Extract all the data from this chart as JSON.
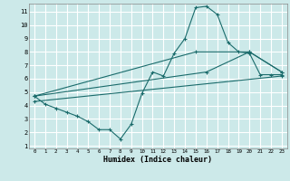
{
  "xlabel": "Humidex (Indice chaleur)",
  "bg_color": "#cce9e9",
  "grid_color": "#ffffff",
  "line_color": "#1a6b6b",
  "line1_x": [
    0,
    1,
    2,
    3,
    4,
    5,
    6,
    7,
    8,
    9,
    10,
    11,
    12,
    13,
    14,
    15,
    16,
    17,
    18,
    19,
    20,
    21,
    22,
    23
  ],
  "line1_y": [
    4.7,
    4.1,
    3.8,
    3.5,
    3.2,
    2.8,
    2.2,
    2.2,
    1.5,
    2.6,
    4.9,
    6.5,
    6.2,
    7.9,
    9.0,
    11.3,
    11.4,
    10.8,
    8.7,
    8.0,
    7.9,
    6.3,
    6.3,
    6.3
  ],
  "line2_x": [
    0,
    15,
    20,
    23
  ],
  "line2_y": [
    4.7,
    8.0,
    8.0,
    6.5
  ],
  "line3_x": [
    0,
    16,
    20,
    23
  ],
  "line3_y": [
    4.7,
    6.5,
    8.0,
    6.5
  ],
  "line4_x": [
    0,
    23
  ],
  "line4_y": [
    4.3,
    6.2
  ],
  "xlim": [
    -0.5,
    23.5
  ],
  "ylim": [
    0.8,
    11.6
  ],
  "xticks": [
    0,
    1,
    2,
    3,
    4,
    5,
    6,
    7,
    8,
    9,
    10,
    11,
    12,
    13,
    14,
    15,
    16,
    17,
    18,
    19,
    20,
    21,
    22,
    23
  ],
  "yticks": [
    1,
    2,
    3,
    4,
    5,
    6,
    7,
    8,
    9,
    10,
    11
  ]
}
